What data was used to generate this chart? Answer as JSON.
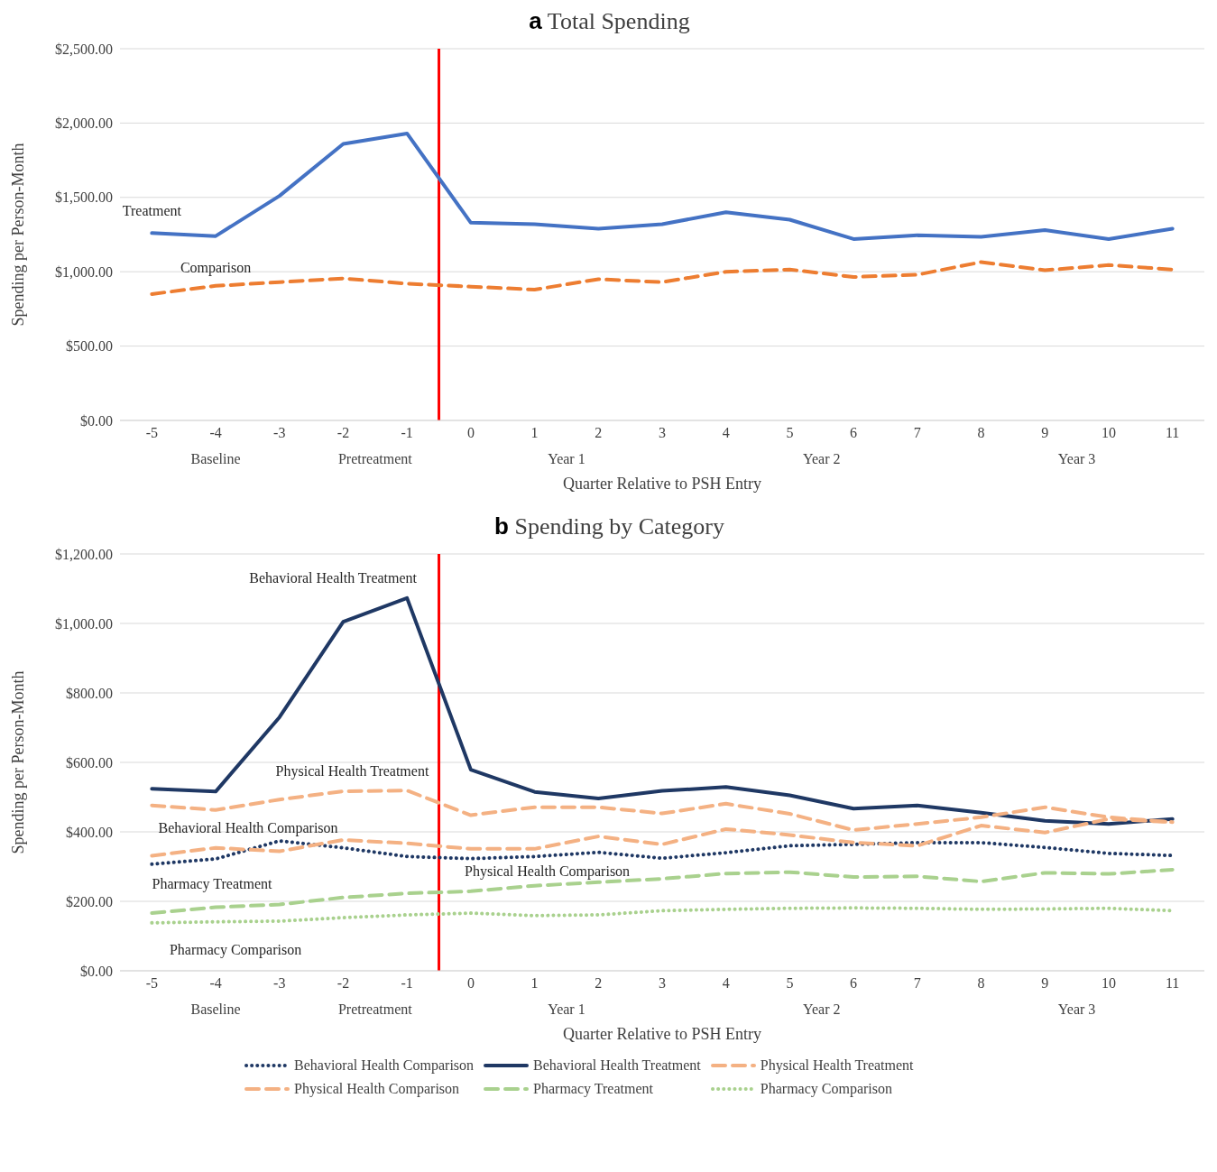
{
  "chart_data": [
    {
      "type": "line",
      "title": "a Total Spending",
      "xlabel": "Quarter Relative to PSH Entry",
      "ylabel": "Spending per Person-Month",
      "x": [
        -5,
        -4,
        -3,
        -2,
        -1,
        0,
        1,
        2,
        3,
        4,
        5,
        6,
        7,
        8,
        9,
        10,
        11
      ],
      "xlim": [
        -5.5,
        11.5
      ],
      "xticks": [
        -5,
        -4,
        -3,
        -2,
        -1,
        0,
        1,
        2,
        3,
        4,
        5,
        6,
        7,
        8,
        9,
        10,
        11
      ],
      "annotations": [
        "Baseline",
        "Pretreatment",
        "Year 1",
        "Year 2",
        "Year 3"
      ],
      "ylim": [
        0,
        2500
      ],
      "yticks": [
        {
          "value": 0,
          "label": "$0.00"
        },
        {
          "value": 500,
          "label": "$500.00"
        },
        {
          "value": 1000,
          "label": "$1,000.00"
        },
        {
          "value": 1500,
          "label": "$1,500.00"
        },
        {
          "value": 2000,
          "label": "$2,000.00"
        },
        {
          "value": 2500,
          "label": "$2,500.00"
        }
      ],
      "grid": "y",
      "legend": false,
      "series": [
        {
          "name": "Treatment",
          "color": "#4472c4",
          "line_style": "solid",
          "values": [
            1260,
            1240,
            1510,
            1860,
            1930,
            1330,
            1320,
            1290,
            1320,
            1400,
            1350,
            1220,
            1245,
            1235,
            1280,
            1220,
            1290
          ]
        },
        {
          "name": "Comparison",
          "color": "#ed7d31",
          "line_style": "dashed",
          "values": [
            850,
            905,
            930,
            955,
            920,
            900,
            880,
            950,
            930,
            1000,
            1015,
            965,
            980,
            1065,
            1010,
            1045,
            1015
          ]
        }
      ],
      "ref_lines": [
        {
          "axis": "x",
          "value": -0.5,
          "color": "#ff0000"
        }
      ]
    },
    {
      "type": "line",
      "title": "b Spending by Category",
      "xlabel": "Quarter Relative to PSH Entry",
      "ylabel": "Spending per Person-Month",
      "x": [
        -5,
        -4,
        -3,
        -2,
        -1,
        0,
        1,
        2,
        3,
        4,
        5,
        6,
        7,
        8,
        9,
        10,
        11
      ],
      "xlim": [
        -5.5,
        11.5
      ],
      "xticks": [
        -5,
        -4,
        -3,
        -2,
        -1,
        0,
        1,
        2,
        3,
        4,
        5,
        6,
        7,
        8,
        9,
        10,
        11
      ],
      "annotations": [
        "Baseline",
        "Pretreatment",
        "Year 1",
        "Year 2",
        "Year 3"
      ],
      "ylim": [
        0,
        1200
      ],
      "yticks": [
        {
          "value": 0,
          "label": "$0.00"
        },
        {
          "value": 200,
          "label": "$200.00"
        },
        {
          "value": 400,
          "label": "$400.00"
        },
        {
          "value": 600,
          "label": "$600.00"
        },
        {
          "value": 800,
          "label": "$800.00"
        },
        {
          "value": 1000,
          "label": "$1,000.00"
        },
        {
          "value": 1200,
          "label": "$1,200.00"
        }
      ],
      "grid": "y",
      "legend": "bottom",
      "series": [
        {
          "name": "Behavioral Health Comparison",
          "color": "#1f3864",
          "line_style": "dotted",
          "values": [
            307,
            322,
            374,
            354,
            329,
            323,
            329,
            341,
            324,
            340,
            360,
            364,
            369,
            369,
            355,
            338,
            332
          ]
        },
        {
          "name": "Behavioral Health Treatment",
          "color": "#1f3864",
          "line_style": "solid",
          "values": [
            524,
            516,
            730,
            1005,
            1073,
            579,
            515,
            496,
            518,
            529,
            505,
            467,
            476,
            455,
            432,
            423,
            437
          ]
        },
        {
          "name": "Physical Health Treatment",
          "color": "#f4b183",
          "line_style": "dashed",
          "values": [
            476,
            463,
            493,
            517,
            519,
            448,
            471,
            471,
            453,
            481,
            452,
            405,
            423,
            442,
            471,
            442,
            428
          ]
        },
        {
          "name": "Physical Health Comparison",
          "color": "#f4b183",
          "line_style": "dashed",
          "values": [
            331,
            354,
            344,
            377,
            367,
            351,
            351,
            387,
            364,
            408,
            391,
            369,
            360,
            418,
            398,
            437,
            428
          ]
        },
        {
          "name": "Pharmacy Treatment",
          "color": "#a9d18e",
          "line_style": "dashed",
          "values": [
            166,
            183,
            191,
            211,
            223,
            229,
            245,
            255,
            265,
            280,
            284,
            270,
            272,
            257,
            282,
            279,
            291
          ]
        },
        {
          "name": "Pharmacy Comparison",
          "color": "#a9d18e",
          "line_style": "dotted",
          "values": [
            138,
            141,
            143,
            153,
            161,
            166,
            159,
            161,
            173,
            177,
            180,
            181,
            180,
            177,
            178,
            180,
            173
          ]
        }
      ],
      "ref_lines": [
        {
          "axis": "x",
          "value": -0.5,
          "color": "#ff0000"
        }
      ]
    }
  ]
}
